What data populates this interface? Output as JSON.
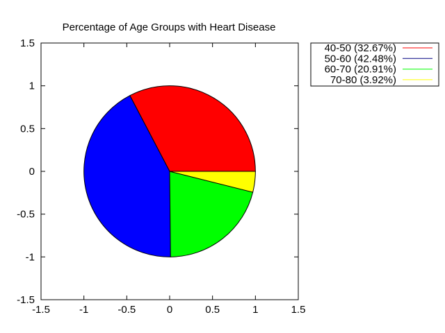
{
  "chart_data": {
    "type": "pie",
    "title": "Percentage of Age Groups with Heart Disease",
    "xlabel": "",
    "ylabel": "",
    "xlim": [
      -1.5,
      1.5
    ],
    "ylim": [
      -1.5,
      1.5
    ],
    "x_ticks": [
      "-1.5",
      "-1",
      "-0.5",
      "0",
      "0.5",
      "1",
      "1.5"
    ],
    "y_ticks": [
      "1.5",
      "1",
      "0.5",
      "0",
      "-0.5",
      "-1",
      "-1.5"
    ],
    "x_tick_values": [
      -1.5,
      -1,
      -0.5,
      0,
      0.5,
      1,
      1.5
    ],
    "y_tick_values": [
      1.5,
      1,
      0.5,
      0,
      -0.5,
      -1,
      -1.5
    ],
    "grid": false,
    "legend_position": "top-right outside",
    "slices": [
      {
        "label": "40-50 (32.67%)",
        "value": 32.67,
        "color": "#ff0000"
      },
      {
        "label": "50-60 (42.48%)",
        "value": 42.48,
        "color": "#0000ff"
      },
      {
        "label": "60-70 (20.91%)",
        "value": 20.91,
        "color": "#00ff00"
      },
      {
        "label": "70-80 (3.92%)",
        "value": 3.92,
        "color": "#ffff00"
      }
    ],
    "legend_line_colors": [
      "#ff0000",
      "#000080",
      "#00ff00",
      "#ffff00"
    ]
  }
}
